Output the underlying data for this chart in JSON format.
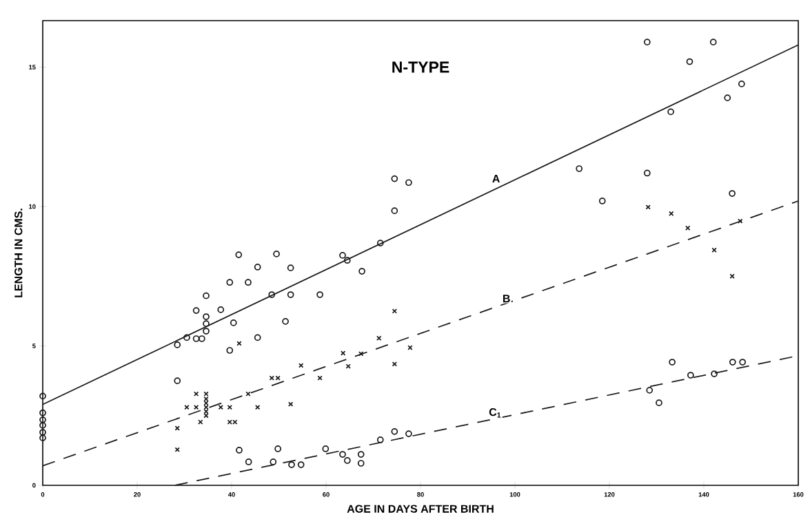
{
  "chart_data": {
    "type": "scatter",
    "title": "N-TYPE",
    "xlabel": "AGE IN DAYS AFTER BIRTH",
    "ylabel": "LENGTH IN CMS.",
    "xlim": [
      0,
      160
    ],
    "ylim": [
      0,
      16.67
    ],
    "xticks": [
      0,
      20,
      40,
      60,
      80,
      100,
      120,
      140,
      160
    ],
    "yticks": [
      0,
      5,
      10,
      15
    ],
    "grid": false,
    "series": [
      {
        "marker": "circle",
        "color": "#1a1a1a",
        "x": [
          0,
          0,
          0,
          0,
          0,
          0,
          28.5,
          28.5,
          30.5,
          32.5,
          32.5,
          33.7,
          34.6,
          34.6,
          34.6,
          34.6,
          37.7,
          39.6,
          39.6,
          40.4,
          41.5,
          43.5,
          45.5,
          45.5,
          48.5,
          49.5,
          52.5,
          52.5,
          51.4,
          58.7,
          63.5,
          64.5,
          67.6,
          71.5,
          74.5,
          74.5,
          77.5,
          113.6,
          118.5,
          128,
          128,
          133,
          137,
          142,
          145,
          148,
          146
        ],
        "values": [
          3.2,
          2.6,
          2.35,
          2.15,
          1.9,
          1.7,
          5.04,
          3.75,
          5.3,
          6.27,
          5.26,
          5.26,
          6.8,
          6.05,
          5.8,
          5.53,
          6.3,
          7.28,
          4.84,
          5.83,
          8.27,
          7.28,
          7.83,
          5.3,
          6.84,
          8.3,
          7.8,
          6.84,
          5.88,
          6.84,
          8.25,
          8.07,
          7.68,
          8.69,
          11.0,
          9.85,
          10.86,
          11.36,
          10.2,
          15.9,
          11.2,
          13.4,
          15.2,
          15.9,
          13.9,
          14.4,
          10.47
        ]
      },
      {
        "marker": "cross",
        "color": "#1a1a1a",
        "x": [
          28.5,
          28.5,
          30.5,
          32.5,
          32.5,
          33.4,
          34.6,
          34.6,
          34.6,
          34.6,
          34.6,
          34.6,
          37.7,
          39.6,
          39.6,
          40.7,
          41.6,
          43.5,
          45.5,
          48.5,
          49.8,
          54.7,
          52.5,
          58.7,
          63.6,
          64.7,
          67.4,
          71.2,
          74.5,
          74.5,
          77.8,
          128.2,
          133.1,
          136.6,
          142.2,
          146,
          147.7
        ],
        "values": [
          2.05,
          1.28,
          2.8,
          3.28,
          2.8,
          2.27,
          3.28,
          3.1,
          2.95,
          2.8,
          2.65,
          2.5,
          2.8,
          2.8,
          2.27,
          2.27,
          5.09,
          3.28,
          2.8,
          3.85,
          3.85,
          4.3,
          2.91,
          3.85,
          4.74,
          4.27,
          4.72,
          5.28,
          6.25,
          4.35,
          4.94,
          9.98,
          9.75,
          9.23,
          8.44,
          7.5,
          9.48
        ]
      },
      {
        "marker": "circle",
        "color": "#1a1a1a",
        "x": [
          41.6,
          43.6,
          48.8,
          49.8,
          52.7,
          54.7,
          59.9,
          63.5,
          64.5,
          67.4,
          67.4,
          71.5,
          74.5,
          77.5,
          128.5,
          130.5,
          133.3,
          137.2,
          142.2,
          146.1,
          148.2
        ],
        "values": [
          1.26,
          0.84,
          0.84,
          1.31,
          0.74,
          0.74,
          1.31,
          1.11,
          0.89,
          1.11,
          0.79,
          1.63,
          1.93,
          1.85,
          3.41,
          2.96,
          4.42,
          3.95,
          4.0,
          4.42,
          4.42
        ]
      },
      {
        "type": "line",
        "line_style": "solid",
        "color": "#1a1a1a",
        "x": [
          0,
          160
        ],
        "values": [
          2.9,
          15.8
        ]
      },
      {
        "type": "line",
        "line_style": "dashed",
        "color": "#1a1a1a",
        "x": [
          0,
          160
        ],
        "values": [
          0.7,
          10.2
        ]
      },
      {
        "type": "line",
        "line_style": "dashed",
        "color": "#1a1a1a",
        "x": [
          28,
          160
        ],
        "values": [
          0,
          4.65
        ]
      }
    ],
    "annotations": [
      {
        "text": "A",
        "x": 96,
        "y": 11.0
      },
      {
        "text": "B",
        "x": 98.2,
        "y": 6.7
      },
      {
        "text": "C$_{1}$",
        "x": 95.8,
        "y": 2.6
      }
    ]
  }
}
